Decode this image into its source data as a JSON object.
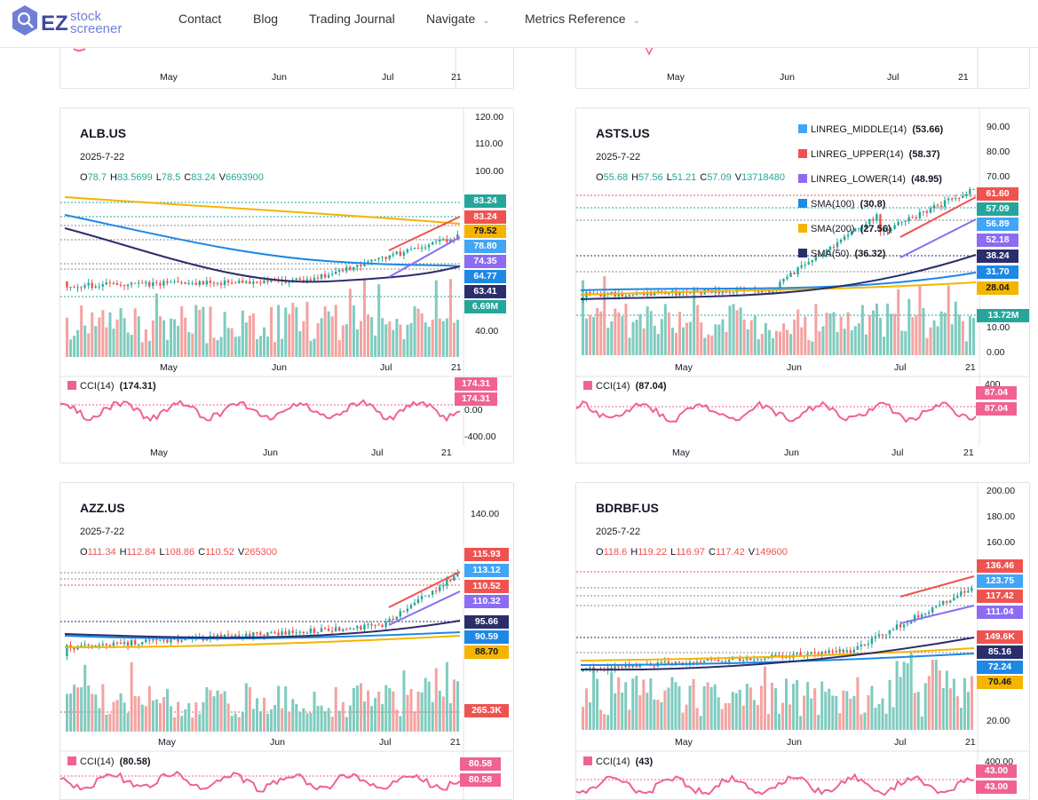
{
  "nav": {
    "logo_big": "EZ",
    "logo_top": "stock",
    "logo_bottom": "screener",
    "items": [
      "Contact",
      "Blog",
      "Trading Journal",
      "Navigate",
      "Metrics Reference"
    ]
  },
  "top_months_left": [
    "May",
    "Jun",
    "Jul",
    "21"
  ],
  "top_months_right": [
    "May",
    "Jun",
    "Jul",
    "21"
  ],
  "panels": {
    "alb": {
      "ticker": "ALB.US",
      "date": "2025-7-22",
      "ohlc": {
        "o": "78.7",
        "h": "83.5699",
        "l": "78.5",
        "c": "83.24",
        "v": "6693900"
      },
      "axis": [
        "120.00",
        "110.00",
        "100.00",
        "40.00"
      ],
      "tags": [
        "83.24",
        "83.24",
        "79.52",
        "78.80",
        "74.35",
        "64.77",
        "63.41",
        "6.69M"
      ],
      "months": [
        "May",
        "Jun",
        "Jul",
        "21"
      ],
      "cci_label": "CCI(14)",
      "cci_value": "(174.31)",
      "cci_tags": [
        "174.31",
        "174.31"
      ],
      "cci_axis": [
        "0.00",
        "-400.00"
      ]
    },
    "asts": {
      "ticker": "ASTS.US",
      "date": "2025-7-22",
      "ohlc": {
        "o": "55.68",
        "h": "57.56",
        "l": "51.21",
        "c": "57.09",
        "v": "13718480"
      },
      "axis": [
        "90.00",
        "80.00",
        "70.00",
        "10.00",
        "0.00"
      ],
      "tags": [
        "61.60",
        "57.09",
        "56.89",
        "52.18",
        "38.24",
        "31.70",
        "28.04",
        "13.72M"
      ],
      "legend": [
        {
          "name": "LINREG_MIDDLE(14)",
          "value": "(53.66)",
          "color": "#42a5f5"
        },
        {
          "name": "LINREG_UPPER(14)",
          "value": "(58.37)",
          "color": "#ef5350"
        },
        {
          "name": "LINREG_LOWER(14)",
          "value": "(48.95)",
          "color": "#8c6cf2"
        },
        {
          "name": "SMA(100)",
          "value": "(30.8)",
          "color": "#1e88e5"
        },
        {
          "name": "SMA(200)",
          "value": "(27.56)",
          "color": "#f4b400"
        },
        {
          "name": "SMA(50)",
          "value": "(36.32)",
          "color": "#2a2e6b"
        }
      ],
      "months": [
        "May",
        "Jun",
        "Jul",
        "21"
      ],
      "cci_label": "CCI(14)",
      "cci_value": "(87.04)",
      "cci_tags": [
        "87.04",
        "87.04"
      ],
      "cci_axis": [
        "400"
      ]
    },
    "azz": {
      "ticker": "AZZ.US",
      "date": "2025-7-22",
      "ohlc": {
        "o": "111.34",
        "h": "112.84",
        "l": "108.86",
        "c": "110.52",
        "v": "265300"
      },
      "axis": [
        "140.00"
      ],
      "tags": [
        "115.93",
        "113.12",
        "110.52",
        "110.32",
        "95.66",
        "90.59",
        "88.70",
        "265.3K"
      ],
      "months": [
        "May",
        "Jun",
        "Jul",
        "21"
      ],
      "cci_label": "CCI(14)",
      "cci_value": "(80.58)",
      "cci_tags": [
        "80.58",
        "80.58"
      ]
    },
    "bdrbf": {
      "ticker": "BDRBF.US",
      "date": "2025-7-22",
      "ohlc": {
        "o": "118.6",
        "h": "119.22",
        "l": "116.97",
        "c": "117.42",
        "v": "149600"
      },
      "axis": [
        "200.00",
        "180.00",
        "160.00",
        "20.00"
      ],
      "tags": [
        "136.46",
        "123.75",
        "117.42",
        "111.04",
        "149.6K",
        "85.16",
        "72.24",
        "70.46"
      ],
      "months": [
        "May",
        "Jun",
        "Jul",
        "21"
      ],
      "cci_label": "CCI(14)",
      "cci_value": "(43)",
      "cci_tags": [
        "43.00",
        "43.00"
      ],
      "cci_axis": [
        "400.00"
      ]
    }
  }
}
